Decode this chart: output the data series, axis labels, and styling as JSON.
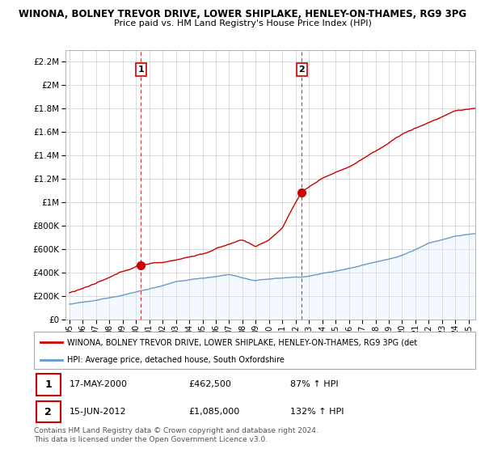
{
  "title1": "WINONA, BOLNEY TREVOR DRIVE, LOWER SHIPLAKE, HENLEY-ON-THAMES, RG9 3PG",
  "title2": "Price paid vs. HM Land Registry's House Price Index (HPI)",
  "ylim": [
    0,
    2300000
  ],
  "yticks": [
    0,
    200000,
    400000,
    600000,
    800000,
    1000000,
    1200000,
    1400000,
    1600000,
    1800000,
    2000000,
    2200000
  ],
  "sale1_price": 462500,
  "sale1_x": 2000.38,
  "sale2_price": 1085000,
  "sale2_x": 2012.46,
  "legend_line1": "WINONA, BOLNEY TREVOR DRIVE, LOWER SHIPLAKE, HENLEY-ON-THAMES, RG9 3PG (det",
  "legend_line2": "HPI: Average price, detached house, South Oxfordshire",
  "table_row1": [
    "1",
    "17-MAY-2000",
    "£462,500",
    "87% ↑ HPI"
  ],
  "table_row2": [
    "2",
    "15-JUN-2012",
    "£1,085,000",
    "132% ↑ HPI"
  ],
  "footer1": "Contains HM Land Registry data © Crown copyright and database right 2024.",
  "footer2": "This data is licensed under the Open Government Licence v3.0.",
  "hpi_color": "#6699cc",
  "price_color": "#cc0000",
  "bg_color": "#ffffff",
  "grid_color": "#cccccc",
  "hpi_fill_color": "#ddeeff",
  "xmin": 1994.7,
  "xmax": 2025.5,
  "xticks": [
    1995,
    1996,
    1997,
    1998,
    1999,
    2000,
    2001,
    2002,
    2003,
    2004,
    2005,
    2006,
    2007,
    2008,
    2009,
    2010,
    2011,
    2012,
    2013,
    2014,
    2015,
    2016,
    2017,
    2018,
    2019,
    2020,
    2021,
    2022,
    2023,
    2024,
    2025
  ]
}
